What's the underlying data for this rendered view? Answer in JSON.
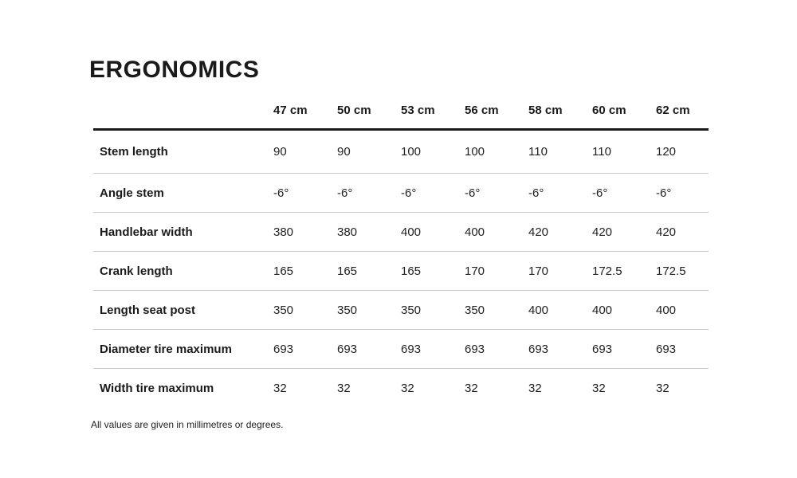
{
  "page": {
    "title": "ERGONOMICS",
    "footnote": "All values are given in millimetres or degrees."
  },
  "table": {
    "size_headers": [
      "47 cm",
      "50 cm",
      "53 cm",
      "56 cm",
      "58 cm",
      "60 cm",
      "62 cm"
    ],
    "rows": [
      {
        "label": "Stem length",
        "values": [
          "90",
          "90",
          "100",
          "100",
          "110",
          "110",
          "120"
        ]
      },
      {
        "label": "Angle stem",
        "values": [
          "-6°",
          "-6°",
          "-6°",
          "-6°",
          "-6°",
          "-6°",
          "-6°"
        ]
      },
      {
        "label": "Handlebar width",
        "values": [
          "380",
          "380",
          "400",
          "400",
          "420",
          "420",
          "420"
        ]
      },
      {
        "label": "Crank length",
        "values": [
          "165",
          "165",
          "165",
          "170",
          "170",
          "172.5",
          "172.5"
        ]
      },
      {
        "label": "Length seat post",
        "values": [
          "350",
          "350",
          "350",
          "350",
          "400",
          "400",
          "400"
        ]
      },
      {
        "label": "Diameter tire maximum",
        "values": [
          "693",
          "693",
          "693",
          "693",
          "693",
          "693",
          "693"
        ]
      },
      {
        "label": "Width tire maximum",
        "values": [
          "32",
          "32",
          "32",
          "32",
          "32",
          "32",
          "32"
        ]
      }
    ]
  }
}
